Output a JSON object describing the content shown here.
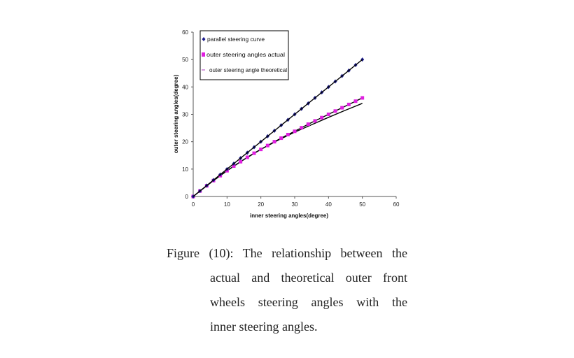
{
  "chart_data": {
    "type": "scatter",
    "title": "",
    "xlabel": "inner steering angles(degree)",
    "ylabel": "outer steering angles(degree)",
    "xlim": [
      0,
      60
    ],
    "ylim": [
      0,
      60
    ],
    "xticks": [
      0,
      10,
      20,
      30,
      40,
      50,
      60
    ],
    "yticks": [
      0,
      10,
      20,
      30,
      40,
      50,
      60
    ],
    "grid": false,
    "legend_position": "upper left (inside plot)",
    "series": [
      {
        "name": "parallel steering curve",
        "marker": "diamond",
        "color": "#1a1a8c",
        "line": "black trendline",
        "x": [
          0,
          2,
          4,
          6,
          8,
          10,
          12,
          14,
          16,
          18,
          20,
          22,
          24,
          26,
          28,
          30,
          32,
          34,
          36,
          38,
          40,
          42,
          44,
          46,
          48,
          50
        ],
        "y": [
          0,
          2,
          4,
          6,
          8,
          10,
          12,
          14,
          16,
          18,
          20,
          22,
          24,
          26,
          28,
          30,
          32,
          34,
          36,
          38,
          40,
          42,
          44,
          46,
          48,
          50
        ]
      },
      {
        "name": "outer steering angles actual",
        "marker": "square",
        "color": "#e020e0",
        "line": "black trendline",
        "x": [
          0,
          2,
          4,
          6,
          8,
          10,
          12,
          14,
          16,
          18,
          20,
          22,
          24,
          26,
          28,
          30,
          32,
          34,
          36,
          38,
          40,
          42,
          44,
          46,
          48,
          50
        ],
        "y": [
          0,
          2,
          3.9,
          5.8,
          7.6,
          9.4,
          11.1,
          12.7,
          14.3,
          15.8,
          17.2,
          18.6,
          20.0,
          21.3,
          22.6,
          23.8,
          25.1,
          26.4,
          27.6,
          28.8,
          30.0,
          31.2,
          32.4,
          33.6,
          34.8,
          36.0
        ]
      },
      {
        "name": "outer steering angle theoretical",
        "marker": "dash",
        "color": "#c77dd6",
        "line": "black line",
        "x": [
          0,
          5,
          10,
          15,
          20,
          25,
          30,
          35,
          40,
          45,
          50
        ],
        "y": [
          0,
          4.9,
          9.4,
          13.5,
          17.2,
          20.5,
          23.5,
          26.2,
          28.9,
          31.5,
          34.0
        ]
      }
    ]
  },
  "caption": {
    "line1": "Figure (10): The relationship between the",
    "line2": "actual and theoretical outer front",
    "line3": "wheels steering angles with the",
    "line4": "inner steering angles."
  }
}
